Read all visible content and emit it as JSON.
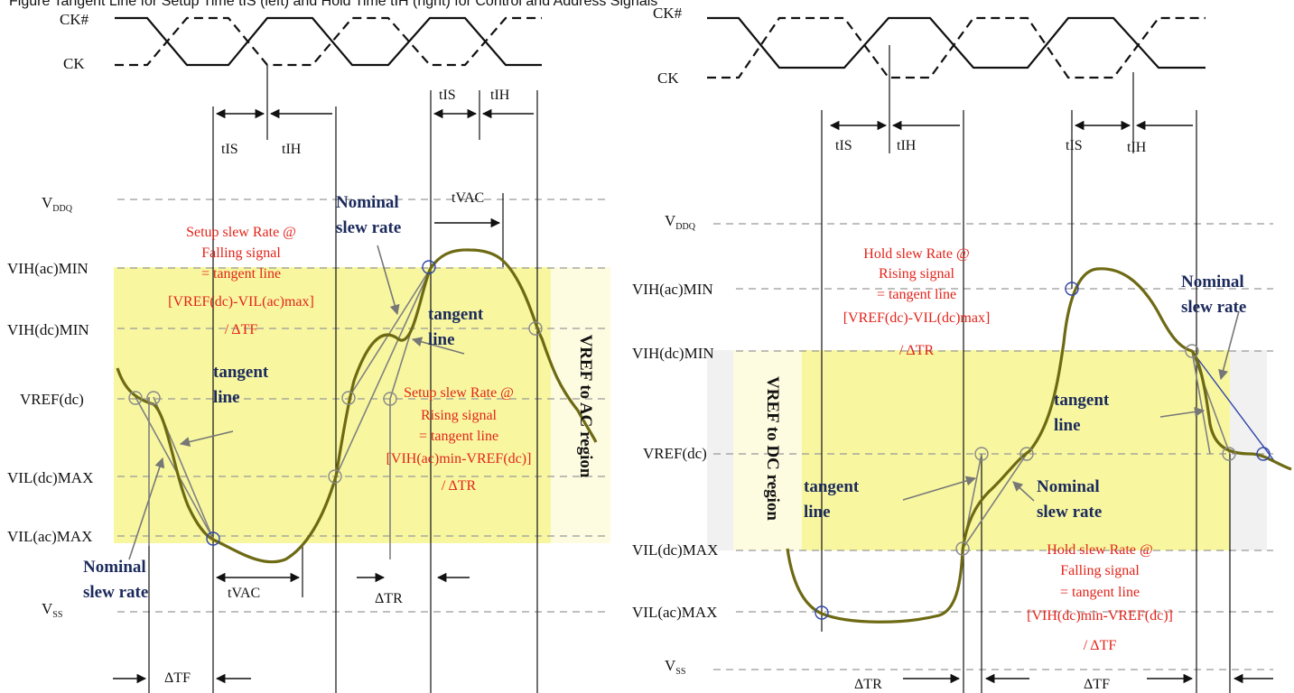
{
  "header": {
    "text": "Figure Tangent Line for Setup Time tIS (left) and Hold Time tIH (right) for Control and Address Signals"
  },
  "clock": {
    "ck_bar": "CK#",
    "ck": "CK"
  },
  "timing": {
    "tis": "tIS",
    "tih": "tIH",
    "tvac": "tVAC",
    "dtr": "ΔTR",
    "dtf": "ΔTF"
  },
  "levels": {
    "vddq": "V",
    "vddq_sub": "DDQ",
    "vss": "V",
    "vss_sub": "SS",
    "vih_ac_min": "VIH(ac)MIN",
    "vih_dc_min": "VIH(dc)MIN",
    "vref_dc": "VREF(dc)",
    "vil_dc_max": "VIL(dc)MAX",
    "vil_ac_max": "VIL(ac)MAX"
  },
  "left": {
    "setup_fall": [
      "Setup slew Rate @",
      "Falling signal",
      "= tangent line",
      "[VREF(dc)-VIL(ac)max]",
      "/ ΔTF"
    ],
    "setup_rise": [
      "Setup slew Rate @",
      "Rising signal",
      "= tangent line",
      "[VIH(ac)min-VREF(dc)]",
      "/ ΔTR"
    ],
    "nominal": [
      "Nominal",
      "slew rate"
    ],
    "tangent": [
      "tangent",
      "line"
    ],
    "region": "VREF to AC region"
  },
  "right": {
    "hold_rise": [
      "Hold slew Rate @",
      "Rising signal",
      "= tangent line",
      "[VREF(dc)-VIL(dc)max]",
      "/ ΔTR"
    ],
    "hold_fall": [
      "Hold slew Rate @",
      "Falling signal",
      "= tangent line",
      "[VIH(dc)min-VREF(dc)]",
      "/ ΔTF"
    ],
    "nominal": [
      "Nominal",
      "slew rate"
    ],
    "tangent": [
      "tangent",
      "line"
    ],
    "region": "VREF to DC region"
  },
  "colors": {
    "highlight": "#f8f7a0",
    "red_text": "#e3241b",
    "navy_text": "#1b2a5c",
    "signal": "#6e6a14"
  }
}
